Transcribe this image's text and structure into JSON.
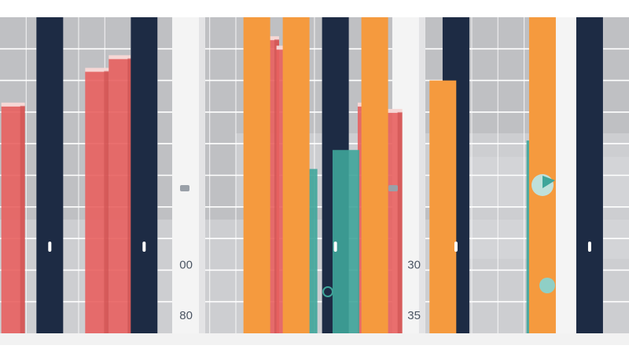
{
  "chart_data": {
    "type": "bar",
    "title": "",
    "xlabel": "",
    "ylabel": "",
    "grid": true,
    "legend": "none",
    "ylim": [
      0,
      100
    ],
    "series": [
      {
        "name": "coral",
        "color": "#e8605f",
        "values": [
          {
            "x": 0.5,
            "v": 72
          },
          {
            "x": 3.7,
            "v": 83
          },
          {
            "x": 4.6,
            "v": 87
          },
          {
            "x": 10.2,
            "v": 93
          },
          {
            "x": 11.0,
            "v": 90
          },
          {
            "x": 14.1,
            "v": 72
          },
          {
            "x": 14.9,
            "v": 70
          }
        ]
      },
      {
        "name": "navy",
        "color": "#1d2b44",
        "values": [
          {
            "x": 1.9,
            "v": 100
          },
          {
            "x": 5.5,
            "v": 100
          },
          {
            "x": 12.8,
            "v": 100
          },
          {
            "x": 17.4,
            "v": 100
          },
          {
            "x": 22.5,
            "v": 100
          }
        ]
      },
      {
        "name": "orange",
        "color": "#f59a3e",
        "values": [
          {
            "x": 9.8,
            "v": 100
          },
          {
            "x": 11.3,
            "v": 100
          },
          {
            "x": 14.3,
            "v": 100
          },
          {
            "x": 16.9,
            "v": 80
          },
          {
            "x": 20.7,
            "v": 100
          }
        ]
      },
      {
        "name": "teal",
        "color": "#3fa59a",
        "values": [
          {
            "x": 11.6,
            "v": 52
          },
          {
            "x": 13.2,
            "v": 58
          },
          {
            "x": 20.6,
            "v": 61
          }
        ]
      },
      {
        "name": "light",
        "color": "#f4f4f4",
        "values": [
          {
            "x": 7.2,
            "v": 100
          },
          {
            "x": 15.6,
            "v": 100
          },
          {
            "x": 21.7,
            "v": 100
          }
        ]
      }
    ],
    "data_labels": [
      {
        "x": 7.1,
        "v": 22,
        "text": "00"
      },
      {
        "x": 7.1,
        "v": 6,
        "text": "80"
      },
      {
        "x": 15.8,
        "v": 22,
        "text": "30"
      },
      {
        "x": 15.8,
        "v": 6,
        "text": "35"
      }
    ]
  }
}
